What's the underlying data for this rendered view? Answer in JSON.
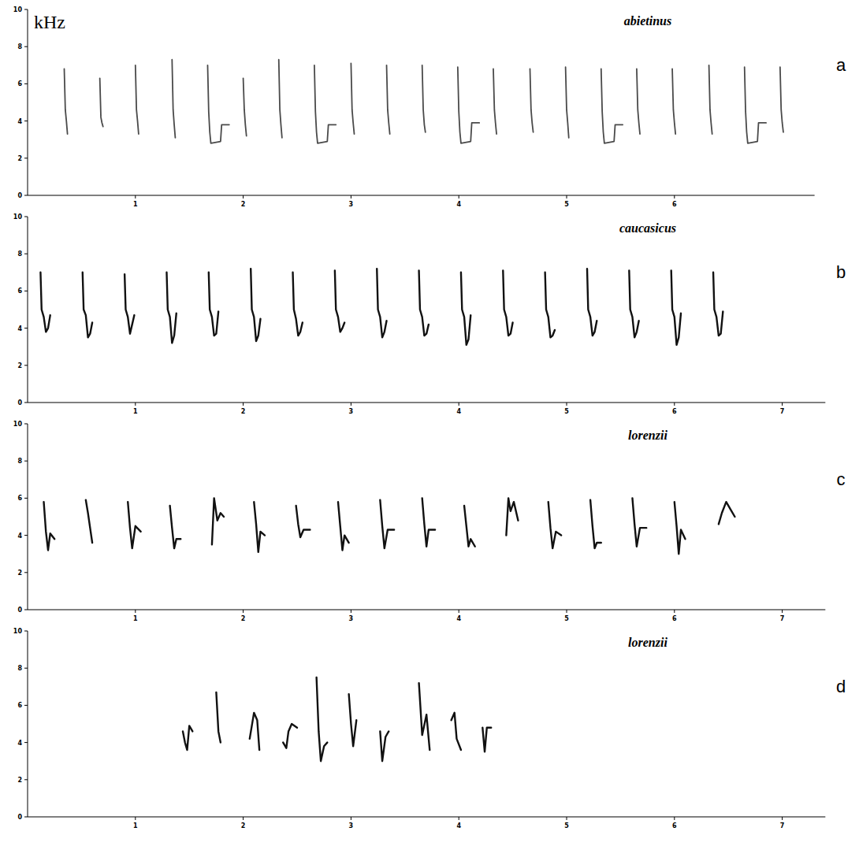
{
  "chart_data": [
    {
      "type": "spectrogram",
      "title": "abietinus",
      "annotations": [
        "a"
      ],
      "ylabel": "kHz",
      "color": "#4a4a4a",
      "xlim": [
        0,
        7.3
      ],
      "ylim": [
        0,
        10
      ],
      "xticks": [
        1,
        2,
        3,
        4,
        5,
        6
      ],
      "yticks": [
        0,
        2,
        4,
        6,
        8,
        10
      ],
      "notes": [
        {
          "x": [
            0.34,
            0.35,
            0.36,
            0.37
          ],
          "y": [
            6.8,
            4.6,
            4.0,
            3.3
          ]
        },
        {
          "x": [
            0.67,
            0.68,
            0.69,
            0.7
          ],
          "y": [
            6.3,
            4.2,
            3.9,
            3.7
          ]
        },
        {
          "x": [
            1.0,
            1.01,
            1.02,
            1.03
          ],
          "y": [
            7.0,
            4.6,
            4.0,
            3.3
          ]
        },
        {
          "x": [
            1.34,
            1.35,
            1.36,
            1.37
          ],
          "y": [
            7.3,
            4.6,
            3.8,
            3.1
          ]
        },
        {
          "x": [
            1.67,
            1.68,
            1.69,
            1.7,
            1.79,
            1.8,
            1.87
          ],
          "y": [
            7.0,
            4.5,
            3.4,
            2.8,
            2.9,
            3.8,
            3.8
          ]
        },
        {
          "x": [
            2.0,
            2.01,
            2.02,
            2.03
          ],
          "y": [
            6.3,
            4.6,
            3.8,
            3.2
          ]
        },
        {
          "x": [
            2.33,
            2.34,
            2.35,
            2.36
          ],
          "y": [
            7.3,
            4.6,
            3.8,
            3.1
          ]
        },
        {
          "x": [
            2.66,
            2.67,
            2.68,
            2.69,
            2.78,
            2.79,
            2.86
          ],
          "y": [
            7.0,
            4.5,
            3.4,
            2.8,
            2.9,
            3.8,
            3.8
          ]
        },
        {
          "x": [
            3.0,
            3.01,
            3.02,
            3.03
          ],
          "y": [
            7.1,
            4.6,
            3.9,
            3.3
          ]
        },
        {
          "x": [
            3.33,
            3.34,
            3.35,
            3.36
          ],
          "y": [
            7.0,
            4.6,
            3.9,
            3.3
          ]
        },
        {
          "x": [
            3.66,
            3.67,
            3.68,
            3.69
          ],
          "y": [
            7.0,
            4.6,
            3.8,
            3.4
          ]
        },
        {
          "x": [
            3.99,
            4.0,
            4.01,
            4.02,
            4.11,
            4.12,
            4.19
          ],
          "y": [
            6.9,
            4.5,
            3.4,
            2.8,
            2.9,
            3.9,
            3.9
          ]
        },
        {
          "x": [
            4.32,
            4.33,
            4.34,
            4.35
          ],
          "y": [
            6.8,
            4.6,
            3.9,
            3.3
          ]
        },
        {
          "x": [
            4.66,
            4.67,
            4.68,
            4.69
          ],
          "y": [
            6.8,
            4.6,
            3.9,
            3.4
          ]
        },
        {
          "x": [
            4.99,
            5.0,
            5.01,
            5.02
          ],
          "y": [
            6.9,
            4.6,
            3.9,
            3.1
          ]
        },
        {
          "x": [
            5.32,
            5.33,
            5.34,
            5.35,
            5.44,
            5.45,
            5.52
          ],
          "y": [
            6.8,
            4.5,
            3.4,
            2.8,
            2.9,
            3.8,
            3.8
          ]
        },
        {
          "x": [
            5.65,
            5.66,
            5.67,
            5.68
          ],
          "y": [
            6.8,
            4.6,
            3.9,
            3.3
          ]
        },
        {
          "x": [
            5.98,
            5.99,
            6.0,
            6.01
          ],
          "y": [
            6.8,
            4.6,
            3.9,
            3.3
          ]
        },
        {
          "x": [
            6.32,
            6.33,
            6.34,
            6.35
          ],
          "y": [
            7.0,
            4.6,
            3.9,
            3.3
          ]
        },
        {
          "x": [
            6.65,
            6.66,
            6.67,
            6.68,
            6.77,
            6.78,
            6.85
          ],
          "y": [
            6.9,
            4.5,
            3.4,
            2.8,
            2.9,
            3.9,
            3.9
          ]
        },
        {
          "x": [
            6.98,
            6.99,
            7.0,
            7.01
          ],
          "y": [
            6.9,
            4.6,
            3.9,
            3.4
          ]
        }
      ]
    },
    {
      "type": "spectrogram",
      "title": "caucasicus",
      "annotations": [
        "b"
      ],
      "color": "#111111",
      "xlim": [
        0,
        7.4
      ],
      "ylim": [
        0,
        10
      ],
      "xticks": [
        1,
        2,
        3,
        4,
        5,
        6,
        7
      ],
      "yticks": [
        0,
        2,
        4,
        6,
        8,
        10
      ],
      "notes": [
        {
          "x": [
            0.12,
            0.13,
            0.15,
            0.17,
            0.19,
            0.21
          ],
          "y": [
            7.0,
            5.0,
            4.6,
            3.8,
            4.0,
            4.7
          ]
        },
        {
          "x": [
            0.51,
            0.52,
            0.54,
            0.56,
            0.58,
            0.6
          ],
          "y": [
            7.0,
            5.0,
            4.7,
            3.5,
            3.7,
            4.3
          ]
        },
        {
          "x": [
            0.9,
            0.91,
            0.93,
            0.95,
            0.97,
            0.99
          ],
          "y": [
            6.9,
            5.0,
            4.6,
            3.7,
            4.2,
            4.7
          ]
        },
        {
          "x": [
            1.29,
            1.3,
            1.32,
            1.34,
            1.36,
            1.38
          ],
          "y": [
            7.0,
            5.0,
            4.6,
            3.2,
            3.6,
            4.8
          ]
        },
        {
          "x": [
            1.68,
            1.69,
            1.71,
            1.73,
            1.75,
            1.77
          ],
          "y": [
            7.0,
            5.0,
            4.6,
            3.6,
            3.7,
            4.9
          ]
        },
        {
          "x": [
            2.07,
            2.08,
            2.1,
            2.12,
            2.14,
            2.16
          ],
          "y": [
            7.2,
            5.0,
            4.6,
            3.3,
            3.6,
            4.5
          ]
        },
        {
          "x": [
            2.46,
            2.47,
            2.49,
            2.51,
            2.53,
            2.55
          ],
          "y": [
            7.0,
            5.0,
            4.5,
            3.6,
            3.8,
            4.3
          ]
        },
        {
          "x": [
            2.85,
            2.86,
            2.88,
            2.9,
            2.92,
            2.94
          ],
          "y": [
            7.1,
            5.0,
            4.6,
            3.8,
            4.0,
            4.3
          ]
        },
        {
          "x": [
            3.24,
            3.25,
            3.27,
            3.29,
            3.31,
            3.33
          ],
          "y": [
            7.2,
            5.0,
            4.6,
            3.5,
            3.8,
            4.4
          ]
        },
        {
          "x": [
            3.63,
            3.64,
            3.66,
            3.68,
            3.7,
            3.72
          ],
          "y": [
            7.1,
            5.0,
            4.6,
            3.6,
            3.7,
            4.2
          ]
        },
        {
          "x": [
            4.02,
            4.03,
            4.05,
            4.07,
            4.09,
            4.11
          ],
          "y": [
            7.0,
            5.0,
            4.6,
            3.1,
            3.4,
            4.7
          ]
        },
        {
          "x": [
            4.41,
            4.42,
            4.44,
            4.46,
            4.48,
            4.5
          ],
          "y": [
            7.1,
            5.0,
            4.6,
            3.6,
            3.7,
            4.3
          ]
        },
        {
          "x": [
            4.8,
            4.81,
            4.83,
            4.85,
            4.87,
            4.89
          ],
          "y": [
            7.0,
            5.0,
            4.6,
            3.5,
            3.6,
            3.9
          ]
        },
        {
          "x": [
            5.19,
            5.2,
            5.22,
            5.24,
            5.26,
            5.28
          ],
          "y": [
            7.2,
            5.0,
            4.6,
            3.6,
            3.8,
            4.4
          ]
        },
        {
          "x": [
            5.58,
            5.59,
            5.61,
            5.63,
            5.65,
            5.67
          ],
          "y": [
            7.1,
            5.0,
            4.6,
            3.5,
            3.8,
            4.4
          ]
        },
        {
          "x": [
            5.97,
            5.98,
            6.0,
            6.02,
            6.04,
            6.06
          ],
          "y": [
            7.1,
            5.0,
            4.6,
            3.1,
            3.5,
            4.8
          ]
        },
        {
          "x": [
            6.36,
            6.37,
            6.39,
            6.41,
            6.43,
            6.45
          ],
          "y": [
            7.0,
            5.0,
            4.6,
            3.6,
            3.7,
            4.9
          ]
        }
      ]
    },
    {
      "type": "spectrogram",
      "title": "lorenzii",
      "annotations": [
        "c"
      ],
      "color": "#111111",
      "xlim": [
        0,
        7.4
      ],
      "ylim": [
        0,
        10
      ],
      "xticks": [
        1,
        2,
        3,
        4,
        5,
        6,
        7
      ],
      "yticks": [
        0,
        2,
        4,
        6,
        8,
        10
      ],
      "notes": [
        {
          "x": [
            0.15,
            0.17,
            0.19,
            0.21,
            0.25
          ],
          "y": [
            5.8,
            4.2,
            3.2,
            4.1,
            3.8
          ]
        },
        {
          "x": [
            0.54,
            0.56,
            0.58,
            0.6
          ],
          "y": [
            5.9,
            5.2,
            4.4,
            3.6
          ]
        },
        {
          "x": [
            0.93,
            0.95,
            0.97,
            1.0,
            1.05
          ],
          "y": [
            5.8,
            4.4,
            3.3,
            4.5,
            4.2
          ]
        },
        {
          "x": [
            1.32,
            1.34,
            1.36,
            1.38,
            1.42
          ],
          "y": [
            5.6,
            4.4,
            3.3,
            3.8,
            3.8
          ]
        },
        {
          "x": [
            1.71,
            1.73,
            1.76,
            1.79,
            1.82
          ],
          "y": [
            3.5,
            6.0,
            4.8,
            5.2,
            5.0
          ]
        },
        {
          "x": [
            2.1,
            2.12,
            2.14,
            2.16,
            2.2
          ],
          "y": [
            5.8,
            4.6,
            3.1,
            4.2,
            4.0
          ]
        },
        {
          "x": [
            2.49,
            2.51,
            2.53,
            2.56,
            2.62
          ],
          "y": [
            5.6,
            4.6,
            3.9,
            4.3,
            4.3
          ]
        },
        {
          "x": [
            2.88,
            2.9,
            2.92,
            2.94,
            2.98
          ],
          "y": [
            5.8,
            4.5,
            3.2,
            4.0,
            3.6
          ]
        },
        {
          "x": [
            3.27,
            3.29,
            3.31,
            3.34,
            3.4
          ],
          "y": [
            5.9,
            4.5,
            3.3,
            4.3,
            4.3
          ]
        },
        {
          "x": [
            3.66,
            3.68,
            3.7,
            3.72,
            3.78
          ],
          "y": [
            6.0,
            4.6,
            3.4,
            4.3,
            4.3
          ]
        },
        {
          "x": [
            4.05,
            4.07,
            4.09,
            4.11,
            4.15
          ],
          "y": [
            5.6,
            4.5,
            3.4,
            3.8,
            3.4
          ]
        },
        {
          "x": [
            4.44,
            4.46,
            4.48,
            4.51,
            4.55
          ],
          "y": [
            4.0,
            6.0,
            5.3,
            5.8,
            4.8
          ]
        },
        {
          "x": [
            4.83,
            4.85,
            4.87,
            4.9,
            4.95
          ],
          "y": [
            5.8,
            4.4,
            3.3,
            4.2,
            4.0
          ]
        },
        {
          "x": [
            5.22,
            5.24,
            5.26,
            5.28,
            5.32
          ],
          "y": [
            5.9,
            4.5,
            3.3,
            3.6,
            3.6
          ]
        },
        {
          "x": [
            5.61,
            5.63,
            5.65,
            5.68,
            5.74
          ],
          "y": [
            6.0,
            4.6,
            3.4,
            4.4,
            4.4
          ]
        },
        {
          "x": [
            6.0,
            6.02,
            6.04,
            6.06,
            6.1
          ],
          "y": [
            5.8,
            4.5,
            3.0,
            4.3,
            3.8
          ]
        },
        {
          "x": [
            6.41,
            6.44,
            6.48,
            6.52,
            6.56
          ],
          "y": [
            4.6,
            5.2,
            5.8,
            5.4,
            5.0
          ]
        }
      ]
    },
    {
      "type": "spectrogram",
      "title": "lorenzii",
      "annotations": [
        "d"
      ],
      "color": "#111111",
      "xlim": [
        0,
        7.4
      ],
      "ylim": [
        0,
        10
      ],
      "xticks": [
        1,
        2,
        3,
        4,
        5,
        6,
        7
      ],
      "yticks": [
        0,
        2,
        4,
        6,
        8,
        10
      ],
      "notes": [
        {
          "x": [
            1.44,
            1.46,
            1.48,
            1.5,
            1.53
          ],
          "y": [
            4.6,
            4.0,
            3.6,
            4.9,
            4.6
          ]
        },
        {
          "x": [
            1.75,
            1.77,
            1.79
          ],
          "y": [
            6.7,
            4.6,
            4.0
          ]
        },
        {
          "x": [
            2.06,
            2.1,
            2.13,
            2.15
          ],
          "y": [
            4.2,
            5.6,
            5.2,
            3.6
          ]
        },
        {
          "x": [
            2.37,
            2.4,
            2.42,
            2.45,
            2.5
          ],
          "y": [
            4.0,
            3.7,
            4.6,
            5.0,
            4.8
          ]
        },
        {
          "x": [
            2.68,
            2.7,
            2.72,
            2.75,
            2.78
          ],
          "y": [
            7.5,
            4.6,
            3.0,
            3.8,
            4.0
          ]
        },
        {
          "x": [
            2.98,
            3.0,
            3.02,
            3.05
          ],
          "y": [
            6.6,
            5.0,
            3.8,
            5.2
          ]
        },
        {
          "x": [
            3.27,
            3.29,
            3.32,
            3.35
          ],
          "y": [
            4.6,
            3.0,
            4.3,
            4.6
          ]
        },
        {
          "x": [
            3.63,
            3.66,
            3.7,
            3.73
          ],
          "y": [
            7.2,
            4.4,
            5.5,
            3.6
          ]
        },
        {
          "x": [
            3.93,
            3.96,
            3.98,
            4.02
          ],
          "y": [
            5.2,
            5.6,
            4.2,
            3.6
          ]
        },
        {
          "x": [
            4.22,
            4.24,
            4.26,
            4.3
          ],
          "y": [
            4.8,
            3.5,
            4.8,
            4.8
          ]
        }
      ]
    }
  ]
}
